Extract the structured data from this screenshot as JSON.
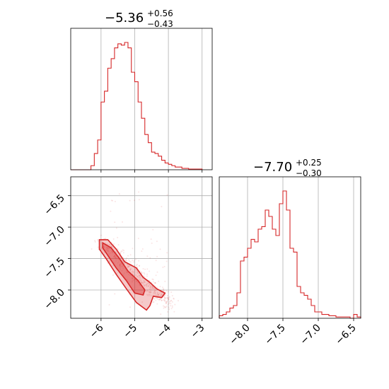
{
  "chart_data": [
    {
      "type": "histogram",
      "panel": "top-left",
      "title": {
        "median": "−5.36",
        "plus": "+0.56",
        "minus": "−0.43"
      },
      "xlim": [
        -6.9,
        -2.7
      ],
      "x_ticks": [
        -6,
        -5,
        -4,
        -3
      ],
      "grid": true,
      "color": "#d62728",
      "bin_edges": [
        -6.3,
        -6.2,
        -6.1,
        -6.0,
        -5.9,
        -5.8,
        -5.7,
        -5.6,
        -5.5,
        -5.4,
        -5.3,
        -5.2,
        -5.1,
        -5.0,
        -4.9,
        -4.8,
        -4.7,
        -4.6,
        -4.5,
        -4.4,
        -4.3,
        -4.2,
        -4.1,
        -4.0,
        -3.9,
        -3.8,
        -3.7,
        -3.6,
        -3.5,
        -3.4,
        -3.3,
        -3.2,
        -3.1,
        -3.0
      ],
      "counts": [
        0.03,
        0.12,
        0.22,
        0.5,
        0.58,
        0.75,
        0.82,
        0.9,
        0.93,
        0.92,
        0.94,
        0.9,
        0.72,
        0.65,
        0.5,
        0.38,
        0.26,
        0.2,
        0.13,
        0.12,
        0.1,
        0.07,
        0.05,
        0.04,
        0.03,
        0.02,
        0.02,
        0.01,
        0.01,
        0.005,
        0.005,
        0.005,
        0.005
      ]
    },
    {
      "type": "scatter+contour",
      "panel": "bottom-left",
      "xlim": [
        -6.9,
        -2.7
      ],
      "ylim": [
        -8.45,
        -6.2
      ],
      "x_ticks": [
        -6,
        -5,
        -4,
        -3
      ],
      "y_ticks": [
        -6.5,
        -7.0,
        -7.5,
        -8.0
      ],
      "grid": true,
      "color": "#d62728",
      "contours": [
        {
          "level": "outer",
          "points": [
            [
              -6.05,
              -7.2
            ],
            [
              -5.8,
              -7.2
            ],
            [
              -5.55,
              -7.35
            ],
            [
              -5.3,
              -7.55
            ],
            [
              -4.95,
              -7.65
            ],
            [
              -4.75,
              -7.8
            ],
            [
              -4.55,
              -7.88
            ],
            [
              -4.35,
              -7.98
            ],
            [
              -4.1,
              -8.05
            ],
            [
              -4.2,
              -8.12
            ],
            [
              -4.45,
              -8.1
            ],
            [
              -4.55,
              -8.25
            ],
            [
              -4.65,
              -8.32
            ],
            [
              -4.95,
              -8.2
            ],
            [
              -5.25,
              -7.98
            ],
            [
              -5.55,
              -7.75
            ],
            [
              -5.85,
              -7.5
            ],
            [
              -6.05,
              -7.35
            ]
          ]
        },
        {
          "level": "inner",
          "points": [
            [
              -5.95,
              -7.25
            ],
            [
              -5.7,
              -7.33
            ],
            [
              -5.45,
              -7.5
            ],
            [
              -5.2,
              -7.7
            ],
            [
              -4.9,
              -7.85
            ],
            [
              -4.7,
              -8.0
            ],
            [
              -4.75,
              -8.08
            ],
            [
              -5.0,
              -8.05
            ],
            [
              -5.25,
              -7.85
            ],
            [
              -5.55,
              -7.65
            ],
            [
              -5.8,
              -7.45
            ],
            [
              -5.95,
              -7.33
            ]
          ]
        }
      ]
    },
    {
      "type": "histogram",
      "panel": "bottom-right",
      "title": {
        "median": "−7.70",
        "plus": "+0.25",
        "minus": "−0.30"
      },
      "xlim": [
        -8.4,
        -6.4
      ],
      "x_ticks": [
        -8.0,
        -7.5,
        -7.0,
        -6.5
      ],
      "x_tick_labels": [
        "−8.0",
        "−7.5",
        "−7.0",
        "−6.5"
      ],
      "grid": true,
      "color": "#d62728",
      "bin_edges": [
        -8.4,
        -8.35,
        -8.3,
        -8.25,
        -8.2,
        -8.15,
        -8.1,
        -8.05,
        -8.0,
        -7.95,
        -7.9,
        -7.85,
        -7.8,
        -7.75,
        -7.7,
        -7.65,
        -7.6,
        -7.55,
        -7.5,
        -7.45,
        -7.4,
        -7.35,
        -7.3,
        -7.25,
        -7.2,
        -7.15,
        -7.1,
        -7.05,
        -7.0,
        -6.95,
        -6.9,
        -6.85,
        -6.8,
        -6.75,
        -6.7,
        -6.65,
        -6.6,
        -6.55,
        -6.5,
        -6.45,
        -6.4
      ],
      "counts": [
        0.02,
        0.03,
        0.05,
        0.08,
        0.1,
        0.2,
        0.45,
        0.48,
        0.55,
        0.62,
        0.6,
        0.7,
        0.72,
        0.85,
        0.8,
        0.7,
        0.65,
        0.9,
        1.0,
        0.85,
        0.55,
        0.52,
        0.25,
        0.2,
        0.18,
        0.15,
        0.1,
        0.05,
        0.05,
        0.03,
        0.03,
        0.02,
        0.02,
        0.01,
        0.01,
        0.01,
        0.01,
        0.0,
        0.03,
        0.01
      ]
    }
  ],
  "x_tick_labels": [
    "−6",
    "−5",
    "−4",
    "−3"
  ],
  "y_tick_labels": [
    "−6.5",
    "−7.0",
    "−7.5",
    "−8.0"
  ]
}
